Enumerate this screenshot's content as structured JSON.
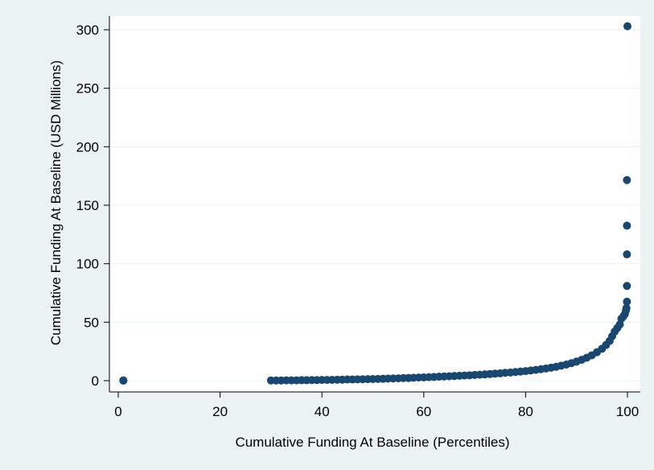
{
  "chart_data": {
    "type": "scatter",
    "xlabel": "Cumulative Funding At Baseline (Percentiles)",
    "ylabel": "Cumulative Funding At Baseline (USD Millions)",
    "xlim": [
      0,
      100
    ],
    "ylim": [
      0,
      300
    ],
    "xticks": [
      0,
      20,
      40,
      60,
      80,
      100
    ],
    "yticks": [
      0,
      50,
      100,
      150,
      200,
      250,
      300
    ],
    "grid": "horizontal",
    "colors": {
      "plot_region": "#eaf2f3",
      "plot_area": "#ffffff",
      "marker": "#1a476f",
      "grid": "#eaf2f3"
    },
    "points": [
      [
        1,
        0
      ],
      [
        1,
        0.3
      ],
      [
        30,
        0.2
      ],
      [
        31,
        0.2
      ],
      [
        32,
        0.2
      ],
      [
        33,
        0.3
      ],
      [
        34,
        0.3
      ],
      [
        35,
        0.3
      ],
      [
        36,
        0.4
      ],
      [
        37,
        0.4
      ],
      [
        38,
        0.5
      ],
      [
        39,
        0.5
      ],
      [
        40,
        0.6
      ],
      [
        41,
        0.6
      ],
      [
        42,
        0.7
      ],
      [
        43,
        0.8
      ],
      [
        44,
        0.9
      ],
      [
        45,
        1.0
      ],
      [
        46,
        1.0
      ],
      [
        47,
        1.1
      ],
      [
        48,
        1.2
      ],
      [
        49,
        1.3
      ],
      [
        50,
        1.4
      ],
      [
        51,
        1.5
      ],
      [
        52,
        1.6
      ],
      [
        53,
        1.8
      ],
      [
        54,
        1.9
      ],
      [
        55,
        2.0
      ],
      [
        56,
        2.2
      ],
      [
        57,
        2.3
      ],
      [
        58,
        2.5
      ],
      [
        59,
        2.7
      ],
      [
        60,
        2.8
      ],
      [
        61,
        3.0
      ],
      [
        62,
        3.2
      ],
      [
        63,
        3.4
      ],
      [
        64,
        3.6
      ],
      [
        65,
        3.8
      ],
      [
        66,
        4.0
      ],
      [
        67,
        4.2
      ],
      [
        68,
        4.4
      ],
      [
        69,
        4.6
      ],
      [
        70,
        4.9
      ],
      [
        71,
        5.1
      ],
      [
        72,
        5.4
      ],
      [
        73,
        5.7
      ],
      [
        74,
        6.0
      ],
      [
        75,
        6.3
      ],
      [
        76,
        6.7
      ],
      [
        77,
        7.0
      ],
      [
        78,
        7.4
      ],
      [
        79,
        7.8
      ],
      [
        80,
        8.2
      ],
      [
        81,
        8.7
      ],
      [
        82,
        9.2
      ],
      [
        83,
        9.8
      ],
      [
        84,
        10.4
      ],
      [
        85,
        11.1
      ],
      [
        86,
        11.9
      ],
      [
        87,
        12.8
      ],
      [
        88,
        13.8
      ],
      [
        89,
        15.0
      ],
      [
        90,
        16.3
      ],
      [
        91,
        17.8
      ],
      [
        92,
        19.6
      ],
      [
        93,
        21.7
      ],
      [
        94,
        24.3
      ],
      [
        95,
        27.3
      ],
      [
        95.8,
        30.5
      ],
      [
        96.5,
        34.0
      ],
      [
        97,
        38.0
      ],
      [
        97.5,
        42.0
      ],
      [
        98,
        45.0
      ],
      [
        98.5,
        48.0
      ],
      [
        98.8,
        53.0
      ],
      [
        99.2,
        55.0
      ],
      [
        99.5,
        57.0
      ],
      [
        99.7,
        60.0
      ],
      [
        99.8,
        62.0
      ],
      [
        99.9,
        67.5
      ],
      [
        99.9,
        81.0
      ],
      [
        99.9,
        108.0
      ],
      [
        99.9,
        132.5
      ],
      [
        99.9,
        171.5
      ],
      [
        100,
        303.0
      ]
    ]
  }
}
